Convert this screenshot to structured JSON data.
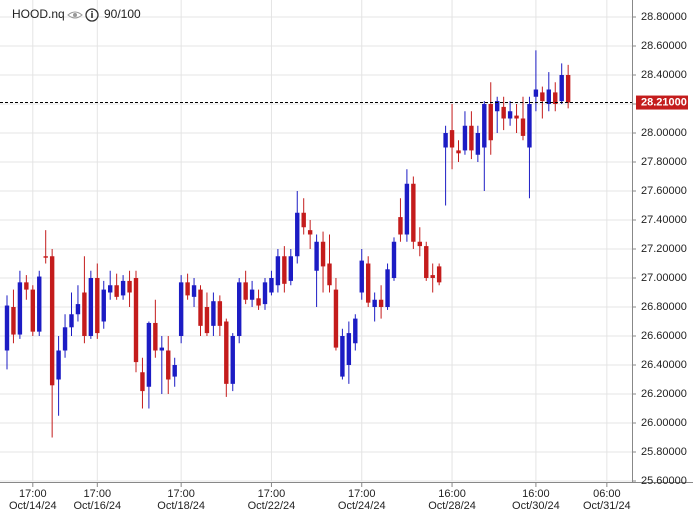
{
  "chart_data": {
    "type": "candlestick",
    "title": "HOOD.nq",
    "subtitle": "90/100",
    "up_color": "#1c1cc4",
    "down_color": "#c41c1c",
    "grid": true,
    "ylim": [
      25.6,
      28.9
    ],
    "yticks": [
      {
        "value": 28.8,
        "label": "28.80000"
      },
      {
        "value": 28.6,
        "label": "28.60000"
      },
      {
        "value": 28.4,
        "label": "28.40000"
      },
      {
        "value": 28.2,
        "label": "28.20000"
      },
      {
        "value": 28.0,
        "label": "28.00000"
      },
      {
        "value": 27.8,
        "label": "27.80000"
      },
      {
        "value": 27.6,
        "label": "27.60000"
      },
      {
        "value": 27.4,
        "label": "27.40000"
      },
      {
        "value": 27.2,
        "label": "27.20000"
      },
      {
        "value": 27.0,
        "label": "27.00000"
      },
      {
        "value": 26.8,
        "label": "26.80000"
      },
      {
        "value": 26.6,
        "label": "26.60000"
      },
      {
        "value": 26.4,
        "label": "26.40000"
      },
      {
        "value": 26.2,
        "label": "26.20000"
      },
      {
        "value": 26.0,
        "label": "26.00000"
      },
      {
        "value": 25.8,
        "label": "25.80000"
      },
      {
        "value": 25.6,
        "label": "25.60000"
      }
    ],
    "last_price": {
      "value": 28.21,
      "label": "28.21000"
    },
    "categories": [
      null,
      null,
      null,
      null,
      [
        "17:00",
        "Oct/14/24"
      ],
      null,
      null,
      null,
      null,
      null,
      null,
      null,
      null,
      null,
      [
        "17:00",
        "Oct/16/24"
      ],
      null,
      null,
      null,
      null,
      null,
      null,
      null,
      null,
      null,
      null,
      null,
      null,
      [
        "17:00",
        "Oct/18/24"
      ],
      null,
      null,
      null,
      null,
      null,
      null,
      null,
      null,
      null,
      null,
      null,
      null,
      null,
      [
        "17:00",
        "Oct/22/24"
      ],
      null,
      null,
      null,
      null,
      null,
      null,
      null,
      null,
      null,
      null,
      null,
      null,
      null,
      [
        "17:00",
        "Oct/24/24"
      ],
      null,
      null,
      null,
      null,
      null,
      null,
      null,
      null,
      null,
      null,
      null,
      null,
      null,
      [
        "16:00",
        "Oct/28/24"
      ],
      null,
      null,
      null,
      null,
      null,
      null,
      null,
      null,
      null,
      null,
      null,
      null,
      [
        "16:00",
        "Oct/30/24"
      ],
      null,
      null,
      null,
      null,
      null,
      null,
      null,
      null,
      null,
      null,
      [
        "06:00",
        "Oct/31/24"
      ]
    ],
    "ohlc": [
      [
        26.5,
        26.88,
        26.37,
        26.81
      ],
      [
        26.8,
        26.92,
        26.55,
        26.61
      ],
      [
        26.61,
        27.05,
        26.58,
        26.97
      ],
      [
        26.97,
        27.02,
        26.85,
        26.92
      ],
      [
        26.92,
        26.95,
        26.6,
        26.63
      ],
      [
        26.63,
        27.05,
        26.6,
        27.01
      ],
      [
        27.15,
        27.33,
        27.1,
        27.14
      ],
      [
        27.15,
        27.2,
        25.9,
        26.26
      ],
      [
        26.3,
        26.6,
        26.05,
        26.5
      ],
      [
        26.5,
        26.75,
        26.45,
        26.66
      ],
      [
        26.66,
        26.9,
        26.6,
        26.75
      ],
      [
        26.75,
        26.95,
        26.7,
        26.82
      ],
      [
        26.9,
        27.15,
        26.55,
        26.6
      ],
      [
        26.6,
        27.05,
        26.58,
        27.0
      ],
      [
        27.0,
        27.1,
        26.58,
        26.62
      ],
      [
        26.7,
        26.98,
        26.65,
        26.92
      ],
      [
        26.9,
        27.05,
        26.85,
        26.95
      ],
      [
        26.95,
        27.03,
        26.85,
        26.87
      ],
      [
        26.88,
        27.02,
        26.85,
        26.98
      ],
      [
        26.98,
        27.05,
        26.8,
        26.9
      ],
      [
        27.0,
        27.05,
        26.35,
        26.42
      ],
      [
        26.35,
        26.45,
        26.1,
        26.22
      ],
      [
        26.25,
        26.7,
        26.1,
        26.69
      ],
      [
        26.69,
        26.85,
        26.45,
        26.5
      ],
      [
        26.5,
        26.6,
        26.2,
        26.52
      ],
      [
        26.5,
        26.6,
        26.2,
        26.3
      ],
      [
        26.32,
        26.45,
        26.25,
        26.4
      ],
      [
        26.6,
        27.02,
        26.55,
        26.97
      ],
      [
        26.97,
        27.03,
        26.85,
        26.88
      ],
      [
        26.87,
        27.0,
        26.8,
        26.95
      ],
      [
        26.92,
        26.95,
        26.6,
        26.67
      ],
      [
        26.8,
        26.9,
        26.6,
        26.62
      ],
      [
        26.67,
        26.9,
        26.6,
        26.84
      ],
      [
        26.84,
        26.88,
        26.6,
        26.67
      ],
      [
        26.7,
        26.72,
        26.18,
        26.27
      ],
      [
        26.27,
        26.62,
        26.22,
        26.6
      ],
      [
        26.6,
        27.0,
        26.55,
        26.97
      ],
      [
        26.97,
        27.05,
        26.82,
        26.85
      ],
      [
        26.85,
        26.98,
        26.8,
        26.92
      ],
      [
        26.86,
        26.92,
        26.78,
        26.81
      ],
      [
        26.82,
        27.0,
        26.78,
        26.97
      ],
      [
        26.9,
        27.05,
        26.88,
        27.0
      ],
      [
        26.95,
        27.2,
        26.9,
        27.15
      ],
      [
        27.15,
        27.22,
        26.9,
        26.96
      ],
      [
        26.98,
        27.2,
        26.95,
        27.15
      ],
      [
        27.15,
        27.6,
        27.1,
        27.45
      ],
      [
        27.45,
        27.55,
        27.3,
        27.35
      ],
      [
        27.33,
        27.4,
        27.2,
        27.3
      ],
      [
        27.05,
        27.3,
        26.8,
        27.25
      ],
      [
        27.25,
        27.32,
        26.9,
        27.08
      ],
      [
        27.1,
        27.3,
        26.9,
        26.95
      ],
      [
        26.92,
        27.0,
        26.5,
        26.52
      ],
      [
        26.32,
        26.65,
        26.3,
        26.6
      ],
      [
        26.4,
        26.7,
        26.27,
        26.62
      ],
      [
        26.55,
        26.75,
        26.5,
        26.72
      ],
      [
        26.9,
        27.2,
        26.85,
        27.12
      ],
      [
        27.1,
        27.15,
        26.8,
        26.83
      ],
      [
        26.8,
        26.9,
        26.7,
        26.85
      ],
      [
        26.85,
        26.95,
        26.72,
        26.8
      ],
      [
        26.8,
        27.1,
        26.78,
        27.06
      ],
      [
        27.0,
        27.28,
        26.98,
        27.25
      ],
      [
        27.42,
        27.55,
        27.25,
        27.3
      ],
      [
        27.3,
        27.75,
        27.25,
        27.65
      ],
      [
        27.65,
        27.7,
        27.2,
        27.25
      ],
      [
        27.25,
        27.35,
        27.15,
        27.22
      ],
      [
        27.22,
        27.25,
        26.98,
        27.0
      ],
      [
        27.02,
        27.1,
        26.9,
        27.0
      ],
      [
        27.08,
        27.1,
        26.95,
        26.97
      ],
      [
        27.9,
        28.05,
        27.5,
        28.0
      ],
      [
        28.02,
        28.2,
        27.75,
        27.9
      ],
      [
        27.88,
        27.95,
        27.8,
        27.86
      ],
      [
        27.88,
        28.15,
        27.85,
        28.05
      ],
      [
        28.05,
        28.15,
        27.82,
        27.88
      ],
      [
        27.85,
        28.05,
        27.8,
        28.0
      ],
      [
        27.9,
        28.22,
        27.6,
        28.2
      ],
      [
        28.2,
        28.35,
        27.85,
        27.95
      ],
      [
        28.15,
        28.25,
        28.0,
        28.22
      ],
      [
        28.18,
        28.25,
        28.02,
        28.1
      ],
      [
        28.1,
        28.22,
        28.05,
        28.15
      ],
      [
        28.12,
        28.2,
        28.0,
        28.1
      ],
      [
        28.1,
        28.25,
        27.95,
        27.98
      ],
      [
        27.9,
        28.25,
        27.55,
        28.2
      ],
      [
        28.25,
        28.57,
        28.15,
        28.3
      ],
      [
        28.28,
        28.32,
        28.1,
        28.22
      ],
      [
        28.2,
        28.42,
        28.15,
        28.3
      ],
      [
        28.28,
        28.35,
        28.15,
        28.2
      ],
      [
        28.22,
        28.48,
        28.2,
        28.4
      ],
      [
        28.4,
        28.47,
        28.17,
        28.21
      ],
      null,
      null,
      null,
      null,
      null,
      null
    ]
  }
}
